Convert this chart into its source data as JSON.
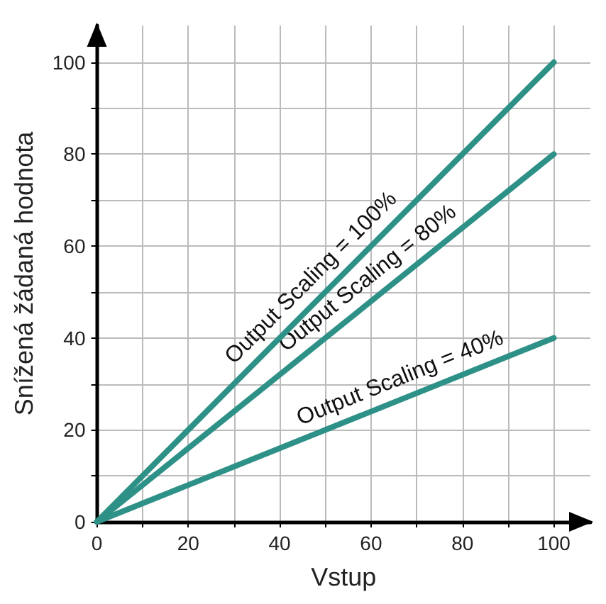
{
  "chart_data": {
    "type": "line",
    "xlabel": "Vstup",
    "ylabel": "Snížená žádaná hodnota",
    "x": [
      0,
      100
    ],
    "series": [
      {
        "color": "#2e9188",
        "values": [
          0,
          100
        ]
      },
      {
        "color": "#2e9188",
        "values": [
          0,
          80
        ]
      },
      {
        "color": "#2e9188",
        "values": [
          0,
          40
        ]
      }
    ],
    "xlim": [
      0,
      108
    ],
    "ylim": [
      0,
      108
    ],
    "xticks": [
      0,
      {
        "value": 10,
        "label": null
      },
      20,
      {
        "value": 30,
        "label": null
      },
      40,
      {
        "value": 50,
        "label": null
      },
      60,
      {
        "value": 70,
        "label": null
      },
      80,
      {
        "value": 90,
        "label": null
      },
      100
    ],
    "yticks": [
      0,
      {
        "value": 10,
        "label": null
      },
      20,
      {
        "value": 30,
        "label": null
      },
      40,
      {
        "value": 50,
        "label": null
      },
      60,
      {
        "value": 70,
        "label": null
      },
      80,
      {
        "value": 90,
        "label": null
      },
      100
    ],
    "grid": true,
    "marker": "none",
    "line_style": "solid",
    "annotations": [
      {
        "text": "Output Scaling = 100%",
        "x": 50,
        "y": 50
      },
      {
        "text": "Output Scaling = 80%",
        "x": 62,
        "y": 49.6
      },
      {
        "text": "Output Scaling = 40%",
        "x": 68,
        "y": 27.2
      }
    ]
  }
}
